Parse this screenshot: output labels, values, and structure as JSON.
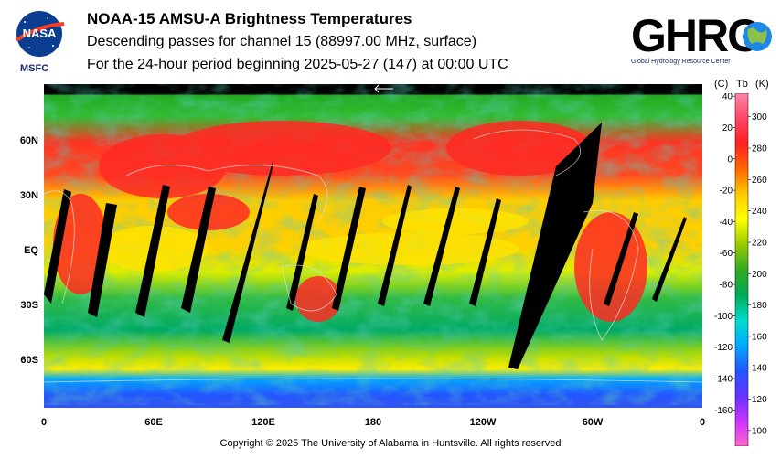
{
  "header": {
    "title": "NOAA-15 AMSU-A Brightness Temperatures",
    "subtitle": "Descending passes for channel 15 (88997.00 MHz, surface)",
    "period": "For the 24-hour period beginning 2025-05-27 (147) at 00:00 UTC"
  },
  "logos": {
    "left_text": "NASA",
    "left_sub": "MSFC",
    "right_text": "GHRC",
    "right_sub": "Global Hydrology Resource Center"
  },
  "map": {
    "lat_labels": [
      "60N",
      "30N",
      "EQ",
      "30S",
      "60S"
    ],
    "lon_labels": [
      "0",
      "60E",
      "120E",
      "180",
      "120W",
      "60W",
      "0"
    ]
  },
  "colorbar": {
    "header_c": "(C)",
    "header_tb": "Tb",
    "header_k": "(K)",
    "celsius_ticks": [
      "40",
      "20",
      "0",
      "-20",
      "-40",
      "-60",
      "-80",
      "-100",
      "-120",
      "-140",
      "-160"
    ],
    "kelvin_ticks": [
      "300",
      "280",
      "260",
      "240",
      "220",
      "200",
      "180",
      "160",
      "140",
      "120",
      "100"
    ],
    "range_k": [
      90,
      315
    ],
    "colors": [
      "#ff66cc",
      "#cc33ff",
      "#6633ff",
      "#2255ff",
      "#00aaff",
      "#00ddcc",
      "#00aa55",
      "#33aa22",
      "#99cc00",
      "#ffff00",
      "#ffcc00",
      "#ff6600",
      "#ff2222",
      "#ff4466",
      "#ff88aa"
    ]
  },
  "footer": {
    "copyright": "Copyright © 2025 The University of Alabama in Huntsville.  All rights reserved"
  }
}
